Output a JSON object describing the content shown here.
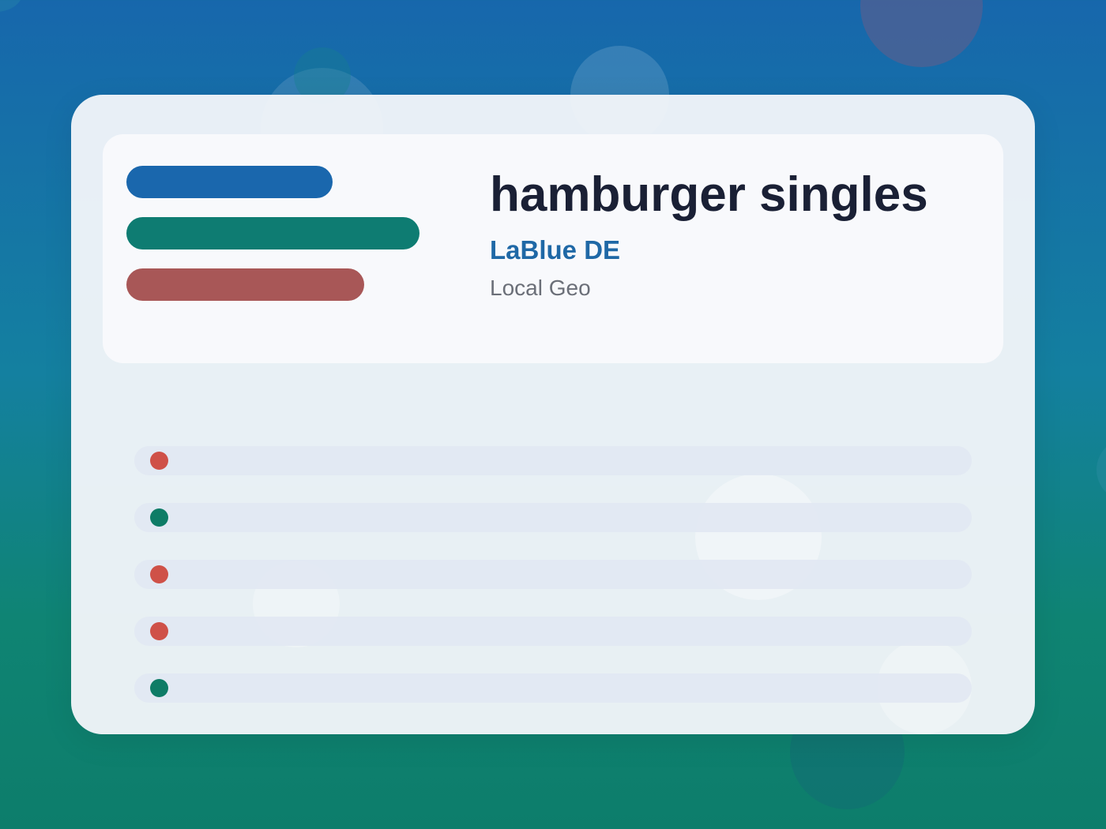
{
  "header": {
    "title": "hamburger singles",
    "brand": "LaBlue DE",
    "caption": "Local Geo"
  },
  "accent_bars": [
    {
      "name": "blue-bar",
      "color": "#1a67ad"
    },
    {
      "name": "green-bar",
      "color": "#0e7c72"
    },
    {
      "name": "red-bar",
      "color": "#a85757"
    }
  ],
  "list_items": [
    {
      "status_color": "#cf5148"
    },
    {
      "status_color": "#0e7c66"
    },
    {
      "status_color": "#cf5148"
    },
    {
      "status_color": "#cf5148"
    },
    {
      "status_color": "#0e7c66"
    }
  ],
  "colors": {
    "title": "#1a2035",
    "brand": "#1f68a6",
    "caption": "#6b6f78",
    "status_red": "#cf5148",
    "status_green": "#0e7c66"
  }
}
